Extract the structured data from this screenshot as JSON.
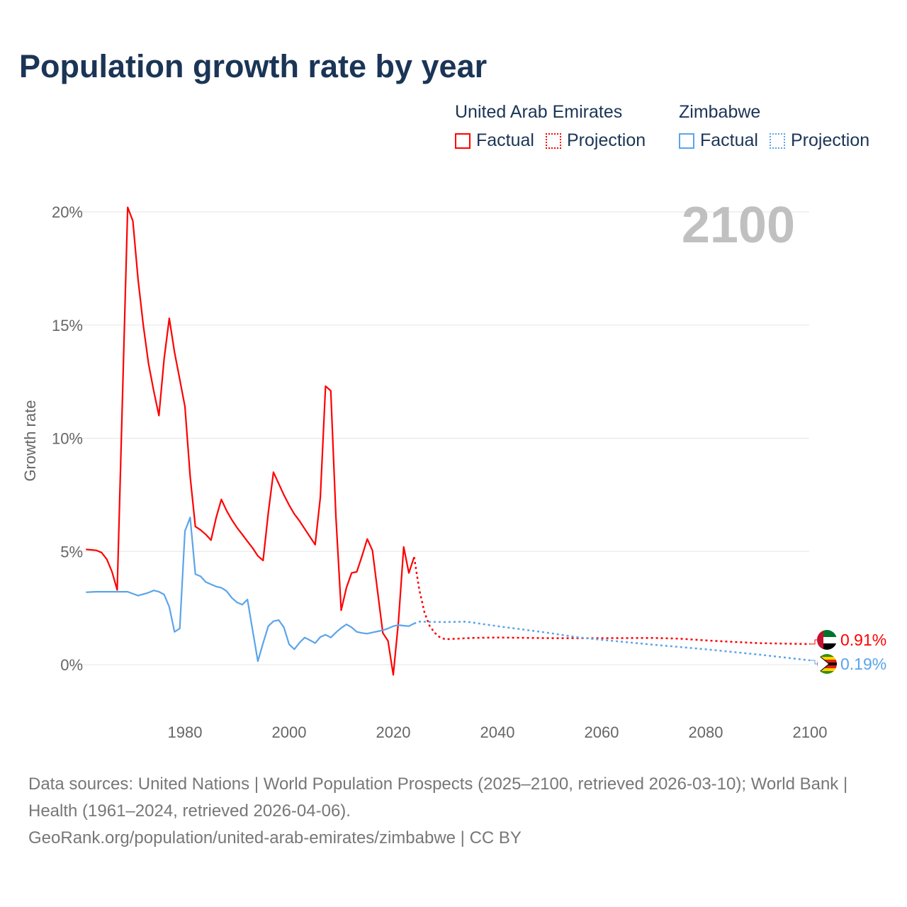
{
  "title": "Population growth rate by year",
  "legend": {
    "groups": [
      {
        "country": "United Arab Emirates",
        "color": "#ff0000",
        "factual": "Factual",
        "projection": "Projection"
      },
      {
        "country": "Zimbabwe",
        "color": "#5ba4ea",
        "factual": "Factual",
        "projection": "Projection"
      }
    ]
  },
  "footer": {
    "sources": "Data sources: United Nations | World Population Prospects (2025–2100, retrieved 2026-03-10); World Bank | Health (1961–2024, retrieved 2026-04-06).",
    "link": "GeoRank.org/population/united-arab-emirates/zimbabwe | CC BY"
  },
  "chart_data": {
    "type": "line",
    "title": "Population growth rate by year",
    "ylabel": "Growth rate",
    "xlabel": "",
    "year_label": "2100",
    "xlim": [
      1961,
      2100
    ],
    "ylim": [
      -1.5,
      20.5
    ],
    "xticks": [
      1980,
      2000,
      2020,
      2040,
      2060,
      2080,
      2100
    ],
    "yticks": [
      0,
      5,
      10,
      15,
      20
    ],
    "ytick_labels": [
      "0%",
      "5%",
      "10%",
      "15%",
      "20%"
    ],
    "grid": true,
    "series": [
      {
        "name": "United Arab Emirates",
        "color": "#ff0000",
        "end_label": "0.91%",
        "factual": {
          "x": [
            1961,
            1963,
            1964,
            1965,
            1966,
            1967,
            1969,
            1970,
            1971,
            1972,
            1973,
            1974,
            1975,
            1976,
            1977,
            1978,
            1979,
            1980,
            1981,
            1982,
            1983,
            1984,
            1985,
            1986,
            1987,
            1988,
            1989,
            1990,
            1991,
            1992,
            1993,
            1994,
            1995,
            1996,
            1997,
            1998,
            1999,
            2000,
            2001,
            2002,
            2003,
            2004,
            2005,
            2006,
            2007,
            2008,
            2009,
            2010,
            2011,
            2012,
            2013,
            2014,
            2015,
            2016,
            2017,
            2018,
            2019,
            2020,
            2021,
            2022,
            2023,
            2024
          ],
          "y": [
            5.09,
            5.05,
            4.95,
            4.65,
            4.1,
            3.3,
            20.2,
            19.6,
            17.0,
            15.0,
            13.3,
            12.1,
            11.0,
            13.5,
            15.3,
            13.8,
            12.6,
            11.4,
            8.3,
            6.1,
            5.95,
            5.75,
            5.5,
            6.5,
            7.3,
            6.8,
            6.4,
            6.05,
            5.75,
            5.45,
            5.15,
            4.8,
            4.6,
            6.7,
            8.5,
            8.0,
            7.5,
            7.05,
            6.65,
            6.35,
            6.0,
            5.65,
            5.3,
            7.4,
            12.3,
            12.1,
            6.5,
            2.4,
            3.4,
            4.05,
            4.1,
            4.8,
            5.55,
            5.05,
            3.2,
            1.4,
            1.05,
            -0.45,
            1.9,
            5.2,
            4.05,
            4.75
          ]
        },
        "projection": {
          "x": [
            2024,
            2025,
            2026,
            2027,
            2028,
            2029,
            2030,
            2035,
            2040,
            2050,
            2060,
            2070,
            2075,
            2080,
            2090,
            2100
          ],
          "y": [
            4.75,
            3.3,
            2.3,
            1.7,
            1.4,
            1.2,
            1.12,
            1.18,
            1.2,
            1.17,
            1.17,
            1.18,
            1.15,
            1.07,
            0.95,
            0.91
          ]
        }
      },
      {
        "name": "Zimbabwe",
        "color": "#5ba4ea",
        "end_label": "0.19%",
        "factual": {
          "x": [
            1961,
            1963,
            1969,
            1971,
            1973,
            1974,
            1975,
            1976,
            1977,
            1978,
            1979,
            1980,
            1981,
            1982,
            1983,
            1984,
            1985,
            1986,
            1987,
            1988,
            1989,
            1990,
            1991,
            1992,
            1993,
            1994,
            1995,
            1996,
            1997,
            1998,
            1999,
            2000,
            2001,
            2002,
            2003,
            2004,
            2005,
            2006,
            2007,
            2008,
            2009,
            2010,
            2011,
            2012,
            2013,
            2014,
            2015,
            2016,
            2017,
            2018,
            2019,
            2020,
            2021,
            2022,
            2023,
            2024
          ],
          "y": [
            3.2,
            3.22,
            3.22,
            3.05,
            3.18,
            3.28,
            3.22,
            3.1,
            2.55,
            1.45,
            1.6,
            5.9,
            6.5,
            4.0,
            3.9,
            3.65,
            3.55,
            3.45,
            3.4,
            3.25,
            2.95,
            2.75,
            2.65,
            2.88,
            1.5,
            0.15,
            0.95,
            1.7,
            1.92,
            1.97,
            1.65,
            0.9,
            0.68,
            0.97,
            1.2,
            1.08,
            0.95,
            1.22,
            1.32,
            1.2,
            1.42,
            1.62,
            1.78,
            1.65,
            1.45,
            1.4,
            1.37,
            1.42,
            1.47,
            1.52,
            1.6,
            1.7,
            1.75,
            1.72,
            1.7,
            1.82
          ]
        },
        "projection": {
          "x": [
            2024,
            2025,
            2030,
            2034,
            2040,
            2045,
            2050,
            2055,
            2060,
            2070,
            2080,
            2090,
            2095,
            2100
          ],
          "y": [
            1.82,
            1.9,
            1.88,
            1.9,
            1.7,
            1.55,
            1.4,
            1.22,
            1.1,
            0.88,
            0.68,
            0.45,
            0.32,
            0.19
          ]
        }
      }
    ]
  }
}
